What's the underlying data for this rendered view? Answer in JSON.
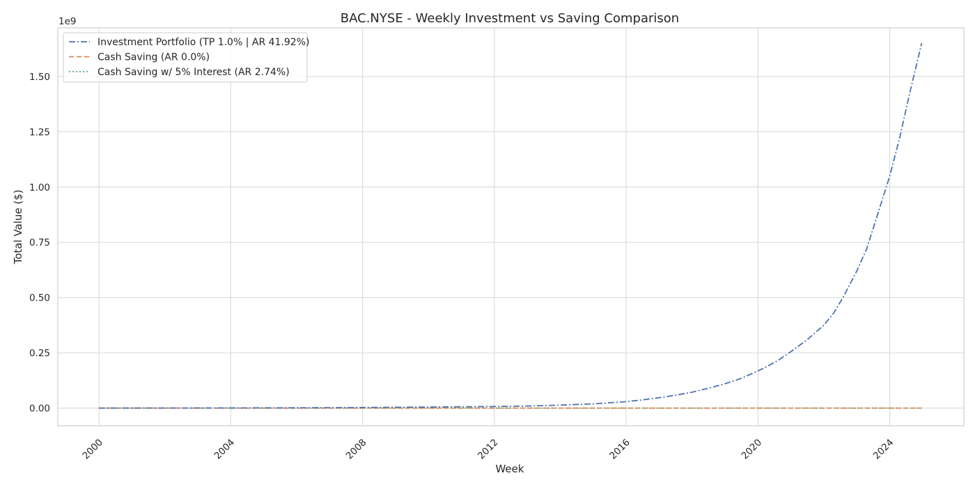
{
  "chart_data": {
    "type": "line",
    "title": "BAC.NYSE - Weekly Investment vs Saving Comparison",
    "xlabel": "Week",
    "ylabel": "Total Value ($)",
    "y_offset_label": "1e9",
    "xlim": [
      1998.75,
      2026.25
    ],
    "ylim": [
      -0.08,
      1.72
    ],
    "x_ticks": [
      2000,
      2004,
      2008,
      2012,
      2016,
      2020,
      2024
    ],
    "x_tick_labels": [
      "2000",
      "2004",
      "2008",
      "2012",
      "2016",
      "2020",
      "2024"
    ],
    "y_ticks": [
      0,
      0.25,
      0.5,
      0.75,
      1.0,
      1.25,
      1.5
    ],
    "y_tick_labels": [
      "0.00",
      "0.25",
      "0.50",
      "0.75",
      "1.00",
      "1.25",
      "1.50"
    ],
    "grid": true,
    "legend_position": "top-left",
    "series": [
      {
        "name": "Investment Portfolio (TP 1.0% | AR 41.92%)",
        "color": "#4C72B0",
        "style": "dashdot",
        "x": [
          2000.0,
          2002.0,
          2004.0,
          2006.0,
          2008.0,
          2010.0,
          2011.0,
          2012.0,
          2013.0,
          2014.0,
          2015.0,
          2016.0,
          2016.5,
          2017.0,
          2017.5,
          2018.0,
          2018.5,
          2019.0,
          2019.5,
          2020.0,
          2020.3,
          2020.6,
          2021.0,
          2021.5,
          2022.0,
          2022.3,
          2022.6,
          2023.0,
          2023.3,
          2023.6,
          2024.0,
          2024.3,
          2024.6,
          2024.97
        ],
        "y": [
          0.0,
          0.0002,
          0.0006,
          0.0013,
          0.0025,
          0.0045,
          0.0058,
          0.0072,
          0.0095,
          0.0135,
          0.019,
          0.029,
          0.037,
          0.047,
          0.058,
          0.072,
          0.09,
          0.11,
          0.135,
          0.168,
          0.19,
          0.215,
          0.255,
          0.31,
          0.375,
          0.43,
          0.505,
          0.62,
          0.72,
          0.86,
          1.05,
          1.22,
          1.42,
          1.65
        ]
      },
      {
        "name": "Cash Saving (AR 0.0%)",
        "color": "#DD8452",
        "style": "dashed",
        "x": [
          2000.0,
          2024.97
        ],
        "y": [
          0.0,
          0.0
        ]
      },
      {
        "name": "Cash Saving w/ 5% Interest (AR 2.74%)",
        "color": "#55A868",
        "style": "dotted",
        "x": [
          2000.0,
          2024.97
        ],
        "y": [
          0.0,
          0.0
        ]
      }
    ]
  }
}
